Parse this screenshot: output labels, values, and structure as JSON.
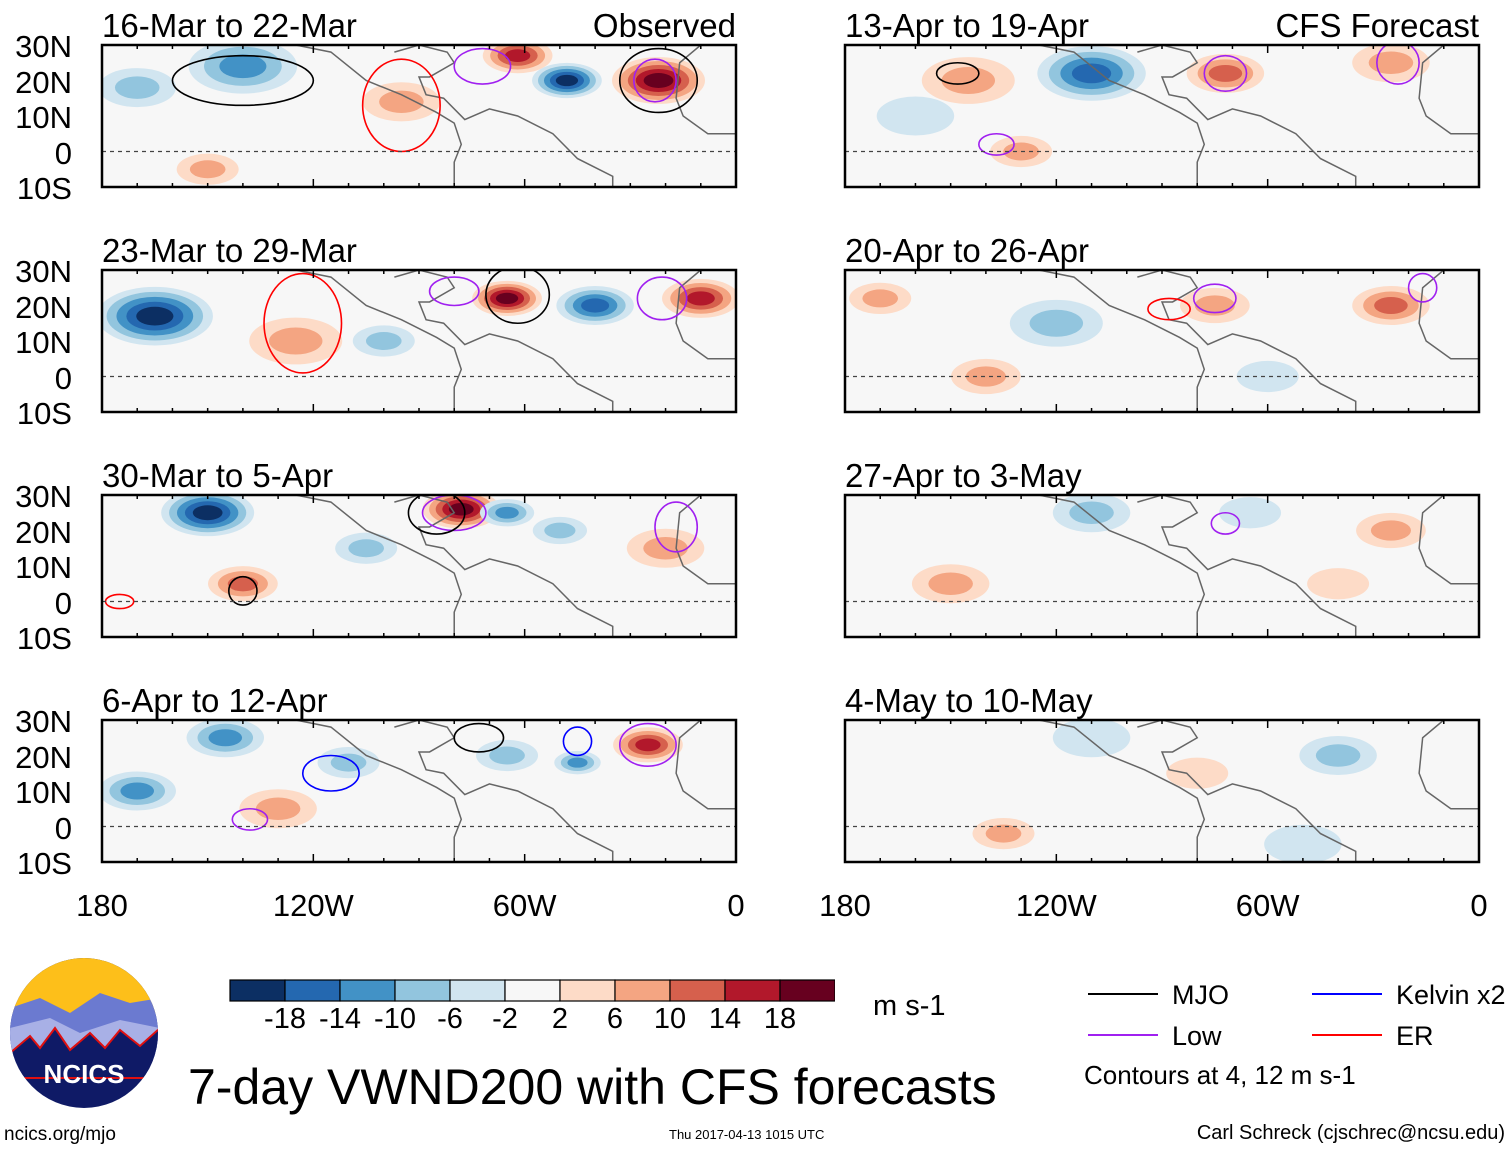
{
  "chart_data": {
    "type": "heatmap",
    "title": "7-day VWND200 with CFS forecasts",
    "units": "m s-1",
    "lon_ticks": [
      "180",
      "120W",
      "60W",
      "0"
    ],
    "lat_ticks": [
      "30N",
      "20N",
      "10N",
      "0",
      "10S"
    ],
    "lon_range": [
      -180,
      0
    ],
    "lat_range": [
      -10,
      30
    ],
    "column_labels": {
      "left": "Observed",
      "right": "CFS Forecast"
    },
    "colorbar": {
      "levels": [
        "-18",
        "-14",
        "-10",
        "-6",
        "-2",
        "2",
        "6",
        "10",
        "14",
        "18"
      ],
      "colors": [
        "#0c2f63",
        "#2468b0",
        "#4292c6",
        "#92c5de",
        "#d1e5f0",
        "#f7f7f7",
        "#fddbc7",
        "#f4a582",
        "#d6604d",
        "#b2182b",
        "#67001f"
      ]
    },
    "legend": [
      {
        "label": "MJO",
        "color": "#000000"
      },
      {
        "label": "Kelvin x2",
        "color": "#0000ff"
      },
      {
        "label": "Low",
        "color": "#a020f0"
      },
      {
        "label": "ER",
        "color": "#ff0000"
      }
    ],
    "contour_note": "Contours at 4, 12 m s-1",
    "panels": [
      {
        "title": "16-Mar to 22-Mar",
        "col": 0,
        "row": 0,
        "features": [
          [
            -48,
            20,
            9,
            -19
          ],
          [
            -22,
            20,
            12,
            16
          ],
          [
            -62,
            27,
            9,
            14
          ],
          [
            -140,
            24,
            14,
            -9
          ],
          [
            -95,
            14,
            10,
            7
          ],
          [
            -150,
            -5,
            8,
            6
          ],
          [
            -170,
            18,
            10,
            -6
          ]
        ],
        "contours": [
          [
            -140,
            20,
            20,
            7,
            "#000"
          ],
          [
            -95,
            13,
            11,
            13,
            "#f00"
          ],
          [
            -22,
            20,
            11,
            9,
            "#000"
          ],
          [
            -23,
            20,
            6,
            6,
            "#a020f0"
          ],
          [
            -72,
            24,
            8,
            5,
            "#a020f0"
          ]
        ]
      },
      {
        "title": "23-Mar to 29-Mar",
        "col": 0,
        "row": 1,
        "features": [
          [
            -165,
            17,
            15,
            -21
          ],
          [
            -125,
            10,
            12,
            7
          ],
          [
            -65,
            22,
            9,
            16
          ],
          [
            -40,
            20,
            10,
            -15
          ],
          [
            -10,
            22,
            10,
            15
          ],
          [
            -100,
            10,
            8,
            -5
          ]
        ],
        "contours": [
          [
            -123,
            15,
            11,
            14,
            "#f00"
          ],
          [
            -62,
            23,
            9,
            8,
            "#000"
          ],
          [
            -21,
            22,
            7,
            6,
            "#a020f0"
          ],
          [
            -80,
            24,
            7,
            4,
            "#a020f0"
          ]
        ]
      },
      {
        "title": "30-Mar to 5-Apr",
        "col": 0,
        "row": 2,
        "features": [
          [
            -150,
            25,
            12,
            -19
          ],
          [
            -140,
            5,
            9,
            11
          ],
          [
            -78,
            26,
            10,
            18
          ],
          [
            -65,
            25,
            7,
            -9
          ],
          [
            -105,
            15,
            8,
            -7
          ],
          [
            -50,
            20,
            7,
            -6
          ],
          [
            -20,
            15,
            10,
            4
          ]
        ],
        "contours": [
          [
            -140,
            3,
            4,
            4,
            "#000"
          ],
          [
            -80,
            25,
            9,
            5,
            "#a020f0"
          ],
          [
            -85,
            25,
            8,
            6,
            "#000"
          ],
          [
            -17,
            21,
            6,
            7,
            "#a020f0"
          ],
          [
            -175,
            0,
            4,
            2,
            "#f00"
          ]
        ]
      },
      {
        "title": "6-Apr to 12-Apr",
        "col": 0,
        "row": 3,
        "features": [
          [
            -170,
            10,
            10,
            -11
          ],
          [
            -145,
            25,
            10,
            -9
          ],
          [
            -130,
            5,
            10,
            7
          ],
          [
            -25,
            23,
            9,
            15
          ],
          [
            -45,
            18,
            6,
            -9
          ],
          [
            -65,
            20,
            8,
            -6
          ],
          [
            -110,
            18,
            8,
            -6
          ]
        ],
        "contours": [
          [
            -115,
            15,
            8,
            5,
            "#00f"
          ],
          [
            -138,
            2,
            5,
            3,
            "#a020f0"
          ],
          [
            -25,
            23,
            8,
            6,
            "#a020f0"
          ],
          [
            -73,
            25,
            7,
            4,
            "#000"
          ],
          [
            -45,
            24,
            4,
            4,
            "#00f"
          ]
        ]
      },
      {
        "title": "13-Apr to 19-Apr",
        "col": 1,
        "row": 0,
        "features": [
          [
            -110,
            22,
            14,
            -15
          ],
          [
            -72,
            22,
            10,
            9
          ],
          [
            -145,
            20,
            12,
            6
          ],
          [
            -25,
            25,
            10,
            7
          ],
          [
            -130,
            0,
            8,
            5
          ],
          [
            -160,
            10,
            10,
            -3
          ]
        ],
        "contours": [
          [
            -72,
            22,
            6,
            5,
            "#a020f0"
          ],
          [
            -23,
            25,
            6,
            6,
            "#a020f0"
          ],
          [
            -148,
            22,
            6,
            3,
            "#000"
          ],
          [
            -137,
            2,
            5,
            3,
            "#a020f0"
          ]
        ]
      },
      {
        "title": "20-Apr to 26-Apr",
        "col": 1,
        "row": 1,
        "features": [
          [
            -25,
            20,
            10,
            9
          ],
          [
            -75,
            20,
            9,
            6
          ],
          [
            -120,
            15,
            12,
            -4
          ],
          [
            -170,
            22,
            8,
            5
          ],
          [
            -140,
            0,
            9,
            4
          ],
          [
            -60,
            0,
            8,
            -3
          ]
        ],
        "contours": [
          [
            -88,
            19,
            6,
            3,
            "#f00"
          ],
          [
            -75,
            22,
            6,
            4,
            "#a020f0"
          ],
          [
            -16,
            25,
            4,
            4,
            "#a020f0"
          ]
        ]
      },
      {
        "title": "27-Apr to 3-May",
        "col": 1,
        "row": 2,
        "features": [
          [
            -150,
            5,
            10,
            5
          ],
          [
            -25,
            20,
            9,
            5
          ],
          [
            -110,
            25,
            10,
            -4
          ],
          [
            -65,
            25,
            8,
            -3
          ],
          [
            -40,
            5,
            8,
            3
          ]
        ],
        "contours": [
          [
            -72,
            22,
            4,
            3,
            "#a020f0"
          ]
        ]
      },
      {
        "title": "4-May to 10-May",
        "col": 1,
        "row": 3,
        "features": [
          [
            -135,
            -2,
            8,
            4
          ],
          [
            -40,
            20,
            10,
            -4
          ],
          [
            -80,
            15,
            8,
            3
          ],
          [
            -110,
            25,
            10,
            -3
          ],
          [
            -50,
            -5,
            10,
            -3
          ]
        ],
        "contours": []
      }
    ]
  },
  "footer": {
    "logo_text": "NCICS",
    "site": "ncics.org/mjo",
    "timestamp": "Thu 2017-04-13 1015 UTC",
    "author": "Carl Schreck (cjschrec@ncsu.edu)"
  }
}
